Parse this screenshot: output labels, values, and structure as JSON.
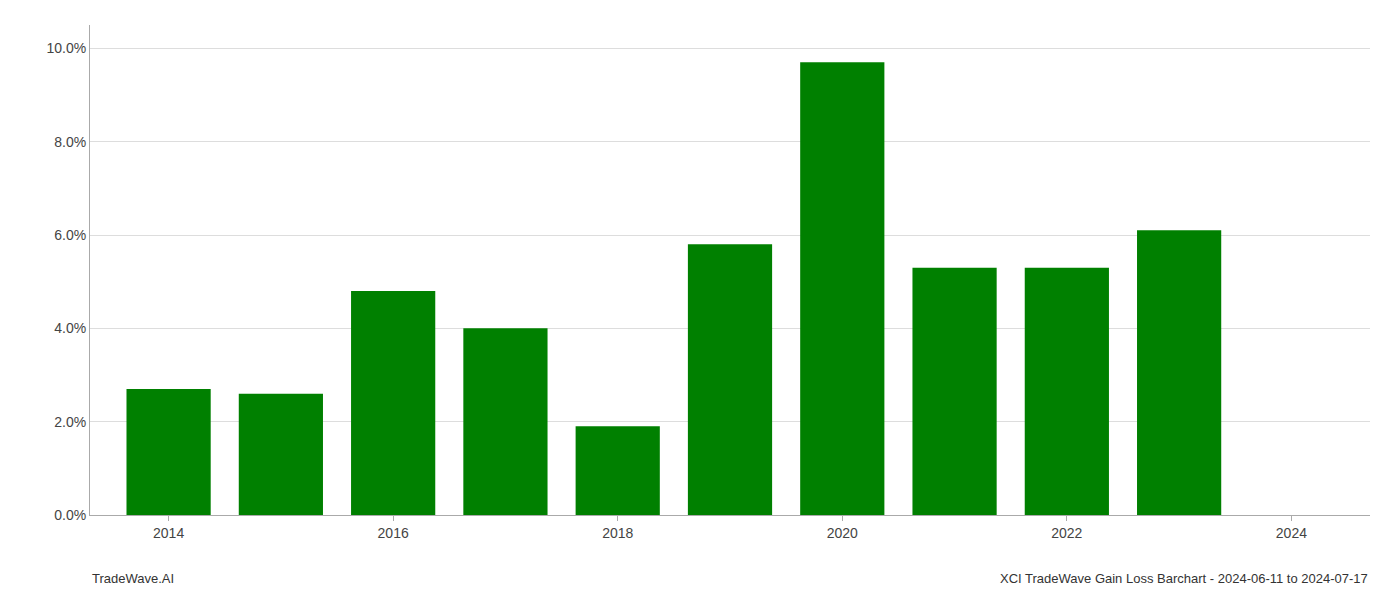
{
  "chart_data": {
    "type": "bar",
    "x": [
      2014,
      2015,
      2016,
      2017,
      2018,
      2019,
      2020,
      2021,
      2022,
      2023
    ],
    "values": [
      0.027,
      0.026,
      0.048,
      0.04,
      0.019,
      0.058,
      0.097,
      0.053,
      0.053,
      0.061
    ],
    "color": "#008000",
    "xlim": [
      2013.3,
      2024.7
    ],
    "xticks": [
      2014,
      2016,
      2018,
      2020,
      2022,
      2024
    ],
    "ylim": [
      0,
      0.105
    ],
    "yticks": [
      {
        "value": 0.0,
        "label": "0.0%"
      },
      {
        "value": 0.02,
        "label": "2.0%"
      },
      {
        "value": 0.04,
        "label": "4.0%"
      },
      {
        "value": 0.06,
        "label": "6.0%"
      },
      {
        "value": 0.08,
        "label": "8.0%"
      },
      {
        "value": 0.1,
        "label": "10.0%"
      }
    ],
    "grid": true,
    "annotations": [
      "TradeWave.AI",
      "XCI TradeWave Gain Loss Barchart - 2024-06-11 to 2024-07-17"
    ]
  }
}
